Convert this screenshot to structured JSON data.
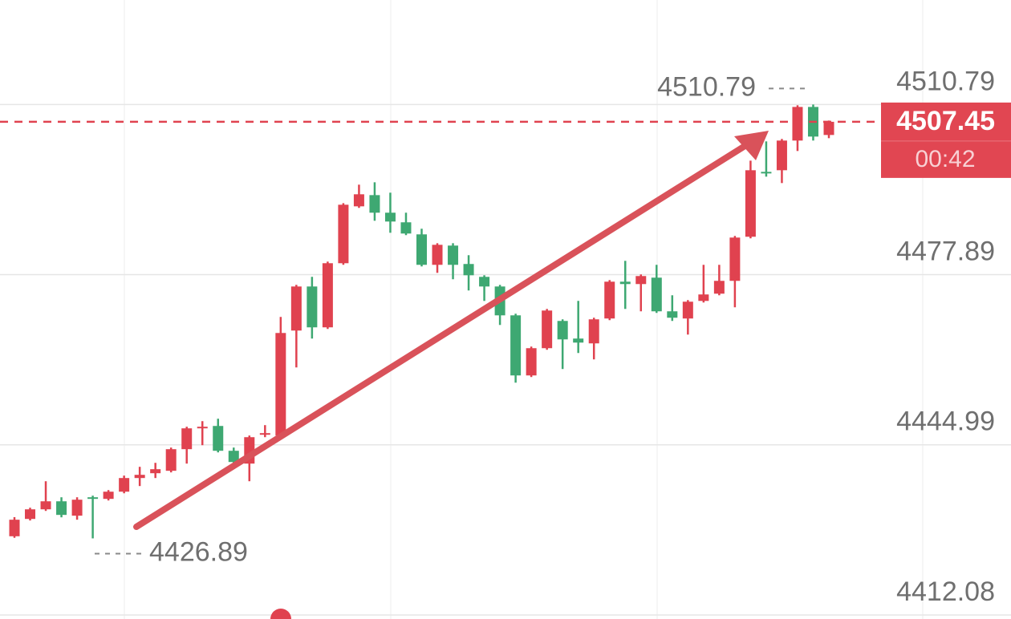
{
  "chart_data": {
    "type": "candlestick",
    "ylim": [
      4411.3,
      4531.0
    ],
    "yticks": [
      4412.08,
      4444.99,
      4477.89,
      4510.79
    ],
    "grid": true,
    "up_color": "#e0424f",
    "down_color": "#3ea872",
    "last_price": 4507.45,
    "countdown": "00:42",
    "max_label": 4510.79,
    "min_label": 4426.89,
    "open": [
      4427.3,
      4430.65,
      4432.51,
      4434.06,
      4431.28,
      4434.84,
      4434.53,
      4435.92,
      4438.56,
      4439.49,
      4439.96,
      4444.14,
      4448.17,
      4448.63,
      4443.83,
      4441.35,
      4446.93,
      4446.78,
      4467.08,
      4475.6,
      4467.7,
      4480.1,
      4491.1,
      4493.27,
      4489.87,
      4488.01,
      4485.68,
      4479.79,
      4483.51,
      4479.95,
      4477.46,
      4475.6,
      4470.02,
      4458.4,
      4463.67,
      4468.94,
      4465.53,
      4464.6,
      4469.41,
      4476.53,
      4476.07,
      4477.31,
      4470.8,
      4469.41,
      4472.81,
      4474.21,
      4476.69,
      4485.22,
      4497.77,
      4498.08,
      4503.82,
      4510.32,
      4504.9
    ],
    "high": [
      4431.0,
      4432.82,
      4437.94,
      4434.84,
      4434.84,
      4435.15,
      4436.23,
      4439.03,
      4440.73,
      4441.5,
      4444.45,
      4448.48,
      4449.56,
      4450.03,
      4444.45,
      4446.78,
      4448.79,
      4469.71,
      4475.91,
      4477.46,
      4480.41,
      4491.72,
      4495.29,
      4495.75,
      4493.74,
      4489.87,
      4486.77,
      4483.97,
      4483.97,
      4481.65,
      4477.77,
      4475.91,
      4470.33,
      4463.98,
      4471.26,
      4469.25,
      4472.81,
      4469.56,
      4476.84,
      4480.56,
      4477.93,
      4479.79,
      4473.9,
      4472.97,
      4479.79,
      4479.79,
      4485.37,
      4499.94,
      4503.66,
      4504.13,
      4510.64,
      4510.79,
      4507.69
    ],
    "low": [
      4427.0,
      4430.35,
      4432.2,
      4430.96,
      4430.5,
      4426.89,
      4434.22,
      4435.61,
      4437.01,
      4438.56,
      4439.65,
      4441.35,
      4444.91,
      4443.52,
      4441.04,
      4437.94,
      4446.46,
      4446.46,
      4459.95,
      4465.53,
      4467.39,
      4479.79,
      4490.8,
      4488.31,
      4485.99,
      4485.53,
      4479.48,
      4478.24,
      4477.0,
      4474.83,
      4472.81,
      4468.16,
      4457.0,
      4458.09,
      4463.36,
      4459.64,
      4462.74,
      4461.5,
      4469.09,
      4471.26,
      4470.8,
      4470.49,
      4468.94,
      4466.3,
      4472.5,
      4473.9,
      4471.57,
      4484.91,
      4496.84,
      4495.6,
      4501.8,
      4503.82,
      4504.28
    ],
    "close": [
      4430.5,
      4432.51,
      4434.06,
      4431.43,
      4434.37,
      4434.53,
      4435.92,
      4438.56,
      4439.18,
      4440.27,
      4444.14,
      4448.17,
      4448.48,
      4443.83,
      4441.66,
      4446.46,
      4447.24,
      4466.61,
      4475.6,
      4467.7,
      4480.1,
      4491.41,
      4493.43,
      4489.87,
      4488.16,
      4485.84,
      4479.79,
      4483.66,
      4479.79,
      4477.77,
      4475.6,
      4470.02,
      4458.4,
      4463.67,
      4470.95,
      4465.37,
      4464.75,
      4469.25,
      4476.53,
      4476.07,
      4477.62,
      4470.8,
      4469.56,
      4472.66,
      4474.06,
      4476.69,
      4485.06,
      4498.08,
      4497.46,
      4503.82,
      4510.32,
      4504.59,
      4507.45
    ]
  }
}
